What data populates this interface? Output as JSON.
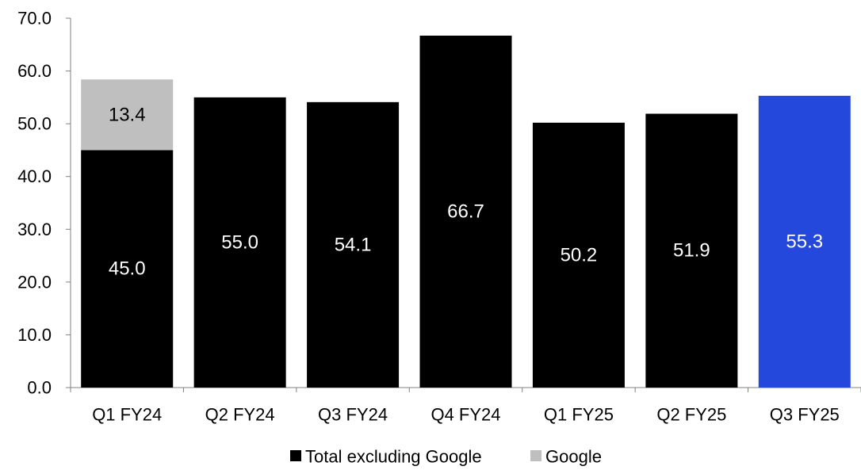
{
  "chart_data": {
    "type": "bar",
    "stacked": true,
    "categories": [
      "Q1 FY24",
      "Q2 FY24",
      "Q3 FY24",
      "Q4 FY24",
      "Q1 FY25",
      "Q2 FY25",
      "Q3 FY25"
    ],
    "series": [
      {
        "name": "Total excluding Google",
        "values": [
          45.0,
          55.0,
          54.1,
          66.7,
          50.2,
          51.9,
          55.3
        ],
        "labels": [
          "45.0",
          "55.0",
          "54.1",
          "66.7",
          "50.2",
          "51.9",
          "55.3"
        ],
        "color": "#000000",
        "highlight_colors": [
          "#000000",
          "#000000",
          "#000000",
          "#000000",
          "#000000",
          "#000000",
          "#2348DB"
        ]
      },
      {
        "name": "Google",
        "values": [
          13.4,
          0,
          0,
          0,
          0,
          0,
          0
        ],
        "labels": [
          "13.4",
          "",
          "",
          "",
          "",
          "",
          ""
        ],
        "color": "#BFBFBF"
      }
    ],
    "y_ticks": [
      "0.0",
      "10.0",
      "20.0",
      "30.0",
      "40.0",
      "50.0",
      "60.0",
      "70.0"
    ],
    "ylim": [
      0,
      70
    ],
    "title": "",
    "xlabel": "",
    "ylabel": "",
    "grid": false,
    "legend_position": "bottom-center",
    "legend": [
      {
        "label": "Total excluding Google",
        "color": "#000000"
      },
      {
        "label": "Google",
        "color": "#BFBFBF"
      }
    ]
  }
}
